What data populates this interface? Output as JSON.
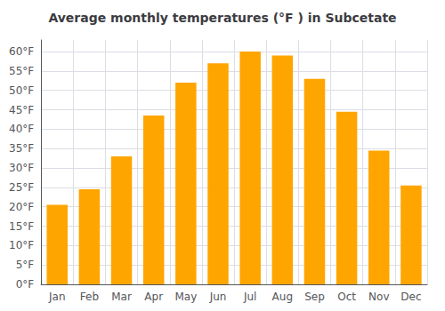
{
  "chart_data": {
    "type": "bar",
    "title": "Average monthly temperatures (°F ) in Subcetate",
    "categories": [
      "Jan",
      "Feb",
      "Mar",
      "Apr",
      "May",
      "Jun",
      "Jul",
      "Aug",
      "Sep",
      "Oct",
      "Nov",
      "Dec"
    ],
    "values": [
      20.5,
      24.5,
      33.0,
      43.5,
      52.0,
      57.0,
      60.0,
      59.0,
      53.0,
      44.5,
      34.5,
      25.5
    ],
    "color": "#FFA500",
    "ylim": [
      0,
      63
    ],
    "yticks": [
      {
        "value": 0,
        "label": "0°F"
      },
      {
        "value": 5,
        "label": "5°F"
      },
      {
        "value": 10,
        "label": "10°F"
      },
      {
        "value": 15,
        "label": "15°F"
      },
      {
        "value": 20,
        "label": "20°F"
      },
      {
        "value": 25,
        "label": "25°F"
      },
      {
        "value": 30,
        "label": "30°F"
      },
      {
        "value": 35,
        "label": "35°F"
      },
      {
        "value": 40,
        "label": "40°F"
      },
      {
        "value": 45,
        "label": "45°F"
      },
      {
        "value": 50,
        "label": "50°F"
      },
      {
        "value": 55,
        "label": "55°F"
      },
      {
        "value": 60,
        "label": "60°F"
      }
    ],
    "grid": true
  }
}
